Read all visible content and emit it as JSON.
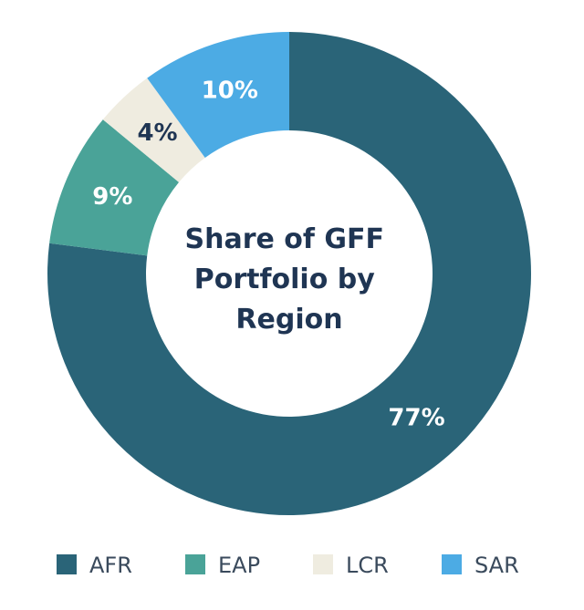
{
  "chart_data": {
    "type": "pie",
    "style": "donut",
    "start_angle_deg": 0,
    "direction": "clockwise",
    "legend_position": "bottom",
    "title_lines": [
      "Share of GFF",
      "Portfolio by",
      "Region"
    ],
    "categories": [
      "AFR",
      "EAP",
      "LCR",
      "SAR"
    ],
    "values": [
      77,
      9,
      4,
      10
    ],
    "value_labels": [
      "77%",
      "9%",
      "4%",
      "10%"
    ],
    "colors": [
      "#2a6478",
      "#4aa398",
      "#efece0",
      "#4cabe4"
    ],
    "label_colors": [
      "#ffffff",
      "#ffffff",
      "#1f3553",
      "#ffffff"
    ]
  }
}
